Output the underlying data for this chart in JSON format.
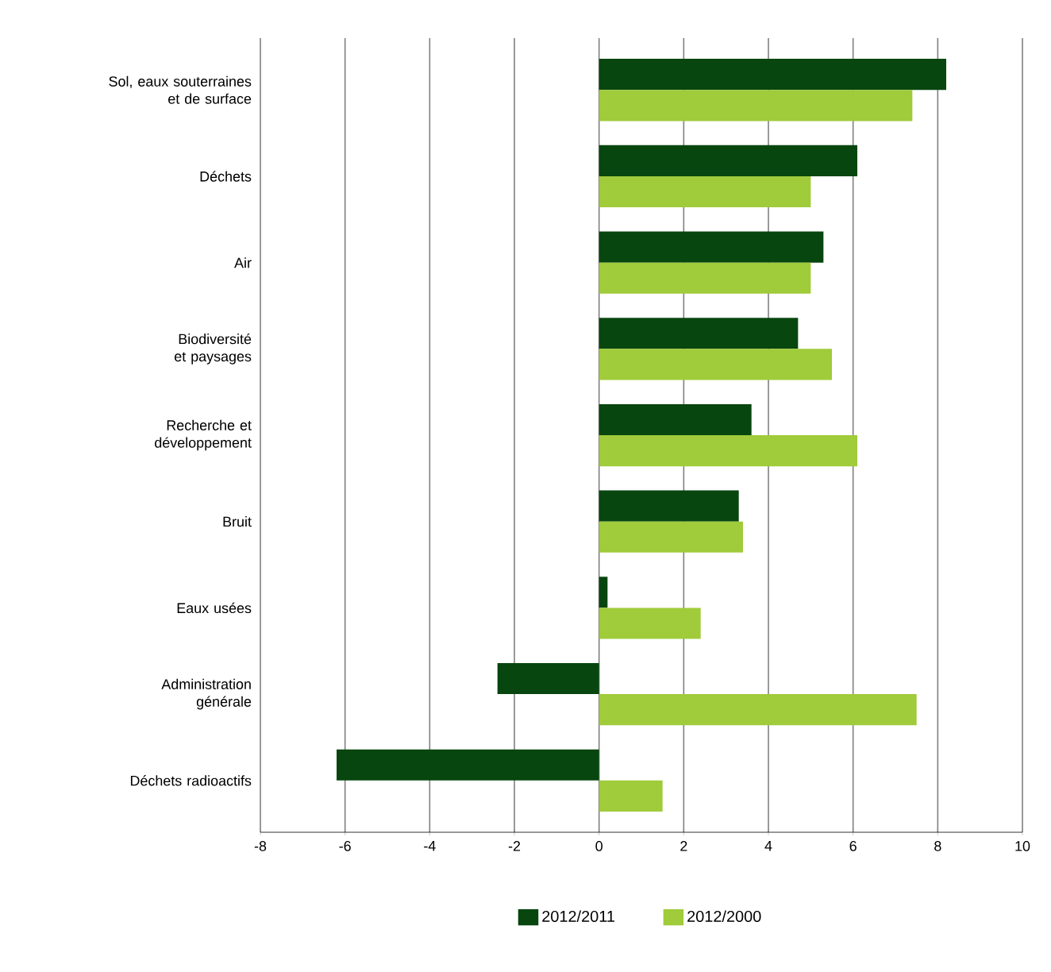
{
  "chart_data": {
    "type": "bar",
    "orientation": "horizontal",
    "categories": [
      "Sol, eaux souterraines et de surface",
      "Déchets",
      "Air",
      "Biodiversité et paysages",
      "Recherche et développement",
      "Bruit",
      "Eaux usées",
      "Administration générale",
      "Déchets radioactifs"
    ],
    "series": [
      {
        "name": "2012/2011",
        "color": "#08460f",
        "values": [
          8.2,
          6.1,
          5.3,
          4.7,
          3.6,
          3.3,
          0.2,
          -2.4,
          -6.2
        ]
      },
      {
        "name": "2012/2000",
        "color": "#a0cb3a",
        "values": [
          7.4,
          5.0,
          5.0,
          5.5,
          6.1,
          3.4,
          2.4,
          7.5,
          1.5
        ]
      }
    ],
    "xlim": [
      -8,
      10
    ],
    "xticks": [
      -8,
      -6,
      -4,
      -2,
      0,
      2,
      4,
      6,
      8,
      10
    ],
    "grid": "x",
    "legend": "bottom"
  }
}
